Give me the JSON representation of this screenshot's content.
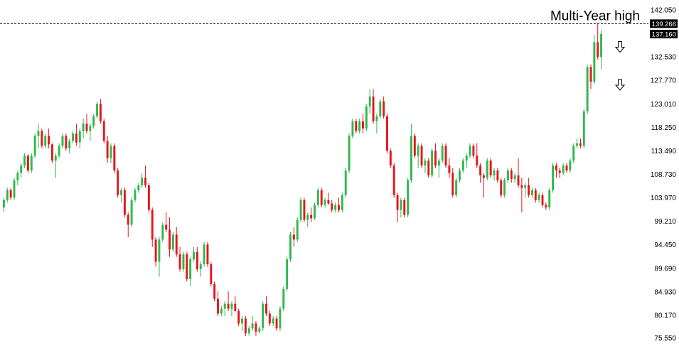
{
  "chart_data": {
    "type": "candlestick",
    "title": "",
    "ylim": [
      75.55,
      142.05
    ],
    "y_ticks": [
      "142.050",
      "137.290",
      "132.530",
      "127.770",
      "123.010",
      "118.250",
      "113.490",
      "108.730",
      "103.970",
      "99.210",
      "94.450",
      "89.690",
      "84.930",
      "80.170",
      "75.550"
    ],
    "y_tick_values": [
      142.05,
      137.29,
      132.53,
      127.77,
      123.01,
      118.25,
      113.49,
      108.73,
      103.97,
      99.21,
      94.45,
      89.69,
      84.93,
      80.17,
      75.55
    ],
    "grid": false,
    "colors": {
      "up": "#2db84d",
      "down": "#e8141c",
      "tag_bg": "#000000",
      "line": "#000000"
    },
    "reference_line": {
      "value": 139.266,
      "label": "139.266",
      "style": "dashed"
    },
    "current_price": {
      "value": 137.16,
      "label": "137.160"
    },
    "annotation": {
      "text": "Multi-Year high"
    },
    "arrows": [
      {
        "icon": "down-arrow-icon",
        "value": 134.5
      },
      {
        "icon": "down-arrow-icon",
        "value": 126.8
      }
    ],
    "candles": [
      [
        102,
        104,
        101,
        103.5
      ],
      [
        103.5,
        106,
        103,
        105.5
      ],
      [
        105.5,
        106,
        103.5,
        104
      ],
      [
        104,
        108,
        103.5,
        107.5
      ],
      [
        107.5,
        109.5,
        106.5,
        109
      ],
      [
        109,
        111,
        108,
        110.5
      ],
      [
        110.5,
        113,
        110,
        112.5
      ],
      [
        112.5,
        112.8,
        109,
        109.5
      ],
      [
        109.5,
        113,
        109,
        112.5
      ],
      [
        112.5,
        117,
        112,
        116.5
      ],
      [
        116.5,
        119,
        114,
        117.5
      ],
      [
        117.5,
        118,
        114,
        114.5
      ],
      [
        114.5,
        117,
        114,
        116.5
      ],
      [
        116.5,
        118,
        114,
        114.8
      ],
      [
        114.8,
        115,
        111,
        111.5
      ],
      [
        111.5,
        113,
        108,
        112.5
      ],
      [
        112.5,
        115,
        112,
        114.5
      ],
      [
        114.5,
        117,
        114,
        116.5
      ],
      [
        116.5,
        117,
        113.5,
        114
      ],
      [
        114,
        116,
        113,
        115.5
      ],
      [
        115.5,
        117.5,
        115,
        117
      ],
      [
        117,
        119,
        114.5,
        115.2
      ],
      [
        115.2,
        118,
        114,
        117.5
      ],
      [
        117.5,
        120,
        116,
        119
      ],
      [
        119,
        121,
        117,
        117.5
      ],
      [
        117.5,
        119,
        115.5,
        118.5
      ],
      [
        118.5,
        121,
        118,
        120.5
      ],
      [
        120.5,
        123.5,
        120,
        123
      ],
      [
        123,
        124,
        119,
        119.5
      ],
      [
        119.5,
        120,
        115,
        115.5
      ],
      [
        115.5,
        116.5,
        111,
        112
      ],
      [
        112,
        115,
        111,
        114.5
      ],
      [
        114.5,
        115,
        109,
        109.5
      ],
      [
        109.5,
        110,
        104,
        104.5
      ],
      [
        104.5,
        106,
        103,
        105.5
      ],
      [
        105.5,
        106,
        100,
        100.5
      ],
      [
        100.5,
        101,
        96,
        98.5
      ],
      [
        98.5,
        104,
        98,
        103.5
      ],
      [
        103.5,
        106,
        103,
        105.5
      ],
      [
        105.5,
        107,
        105,
        106.5
      ],
      [
        106.5,
        109,
        106,
        108
      ],
      [
        108,
        110.5,
        106,
        106.5
      ],
      [
        106.5,
        107,
        101,
        101.5
      ],
      [
        101.5,
        102,
        94,
        95.5
      ],
      [
        95.5,
        96,
        90,
        91
      ],
      [
        91,
        96,
        88,
        95.5
      ],
      [
        95.5,
        99,
        95,
        98.5
      ],
      [
        98.5,
        101,
        97,
        97.5
      ],
      [
        97.5,
        100,
        92,
        93.5
      ],
      [
        93.5,
        97,
        93,
        96.5
      ],
      [
        96.5,
        98,
        92,
        92.5
      ],
      [
        92.5,
        94,
        89,
        89.5
      ],
      [
        89.5,
        93,
        89,
        92.5
      ],
      [
        92.5,
        93,
        87,
        87.5
      ],
      [
        87.5,
        92,
        86,
        91.5
      ],
      [
        91.5,
        94,
        91,
        93
      ],
      [
        93,
        94,
        89,
        89.5
      ],
      [
        89.5,
        91,
        88,
        90.5
      ],
      [
        90.5,
        95,
        90,
        94.5
      ],
      [
        94.5,
        95,
        90,
        90.5
      ],
      [
        90.5,
        91,
        86,
        86.5
      ],
      [
        86.5,
        87,
        83,
        83.5
      ],
      [
        83.5,
        85,
        80,
        80.5
      ],
      [
        80.5,
        82,
        80,
        81.5
      ],
      [
        81.5,
        83,
        80,
        82.5
      ],
      [
        82.5,
        85,
        81,
        81.5
      ],
      [
        81.5,
        83,
        80,
        82.5
      ],
      [
        82.5,
        84,
        81,
        81
      ],
      [
        81,
        81.5,
        78,
        78.5
      ],
      [
        78.5,
        80,
        77,
        79.5
      ],
      [
        79.5,
        80,
        76,
        76.5
      ],
      [
        76.5,
        78,
        76,
        77.5
      ],
      [
        77.5,
        80,
        77,
        78.5
      ],
      [
        78.5,
        79,
        76,
        76.8
      ],
      [
        76.8,
        78,
        76.5,
        77.5
      ],
      [
        77.5,
        83,
        77,
        82.5
      ],
      [
        82.5,
        84,
        80,
        80.5
      ],
      [
        80.5,
        81,
        78,
        78.5
      ],
      [
        78.5,
        80,
        78,
        79.5
      ],
      [
        79.5,
        80,
        77,
        77.5
      ],
      [
        77.5,
        82,
        77,
        81.5
      ],
      [
        81.5,
        86,
        81,
        85.5
      ],
      [
        85.5,
        92,
        85,
        91.5
      ],
      [
        91.5,
        97,
        91,
        96.5
      ],
      [
        96.5,
        98,
        94,
        95.5
      ],
      [
        95.5,
        100,
        95,
        99.5
      ],
      [
        99.5,
        104,
        99,
        103.5
      ],
      [
        103.5,
        104,
        99,
        99.5
      ],
      [
        99.5,
        101,
        98,
        100.5
      ],
      [
        100.5,
        102,
        99,
        99.8
      ],
      [
        99.8,
        103,
        99.5,
        102.5
      ],
      [
        102.5,
        106,
        102,
        105.5
      ],
      [
        105.5,
        106,
        102,
        102.5
      ],
      [
        102.5,
        104,
        102,
        103.5
      ],
      [
        103.5,
        105,
        102.5,
        102.8
      ],
      [
        102.8,
        103.5,
        101,
        101.5
      ],
      [
        101.5,
        103,
        101,
        102.5
      ],
      [
        102.5,
        104,
        101,
        101.5
      ],
      [
        101.5,
        105,
        101,
        104.5
      ],
      [
        104.5,
        110,
        104,
        109.5
      ],
      [
        109.5,
        117,
        109,
        116.5
      ],
      [
        116.5,
        120,
        116,
        119.5
      ],
      [
        119.5,
        120,
        117,
        117.5
      ],
      [
        117.5,
        120,
        117,
        119.5
      ],
      [
        119.5,
        121,
        117,
        118
      ],
      [
        118,
        123,
        117.5,
        122.5
      ],
      [
        122.5,
        126,
        121,
        124.5
      ],
      [
        124.5,
        126,
        119,
        119.5
      ],
      [
        119.5,
        121,
        117,
        120.5
      ],
      [
        120.5,
        124,
        120,
        123.5
      ],
      [
        123.5,
        124.5,
        120,
        120.5
      ],
      [
        120.5,
        121,
        113,
        113.5
      ],
      [
        113.5,
        114,
        110,
        110.5
      ],
      [
        110.5,
        111,
        104,
        104.5
      ],
      [
        104.5,
        105,
        99,
        101.5
      ],
      [
        101.5,
        104,
        100,
        103.5
      ],
      [
        103.5,
        104,
        100,
        100.5
      ],
      [
        100.5,
        108,
        100,
        107.5
      ],
      [
        107.5,
        119,
        107,
        116.5
      ],
      [
        116.5,
        117,
        112,
        112.5
      ],
      [
        112.5,
        115,
        110,
        114.5
      ],
      [
        114.5,
        115,
        110,
        110.5
      ],
      [
        110.5,
        112,
        109,
        111.5
      ],
      [
        111.5,
        112,
        108,
        108.5
      ],
      [
        108.5,
        114,
        108,
        113.5
      ],
      [
        113.5,
        115,
        110,
        110.5
      ],
      [
        110.5,
        112,
        108,
        111.5
      ],
      [
        111.5,
        115,
        111,
        114.5
      ],
      [
        114.5,
        115,
        110,
        110.5
      ],
      [
        110.5,
        112,
        108,
        109
      ],
      [
        109,
        110,
        104,
        104.5
      ],
      [
        104.5,
        108,
        104,
        107.5
      ],
      [
        107.5,
        110,
        107,
        109.5
      ],
      [
        109.5,
        112,
        109,
        111.5
      ],
      [
        111.5,
        113,
        110,
        112.5
      ],
      [
        112.5,
        115,
        112,
        114.5
      ],
      [
        114.5,
        115,
        112,
        112.5
      ],
      [
        112.5,
        115,
        110,
        110.5
      ],
      [
        110.5,
        111,
        107,
        108.5
      ],
      [
        108.5,
        109,
        104,
        108
      ],
      [
        108,
        112,
        107.5,
        111.5
      ],
      [
        111.5,
        112,
        108,
        108.5
      ],
      [
        108.5,
        110,
        107.5,
        109.5
      ],
      [
        109.5,
        110,
        107,
        107.5
      ],
      [
        107.5,
        108,
        104,
        104.5
      ],
      [
        104.5,
        108,
        104,
        107.5
      ],
      [
        107.5,
        110,
        107,
        109.5
      ],
      [
        109.5,
        110,
        107,
        107.8
      ],
      [
        107.8,
        109,
        107,
        108.5
      ],
      [
        108.5,
        112,
        106,
        106.5
      ],
      [
        106.5,
        108,
        101,
        106
      ],
      [
        106,
        107,
        104,
        106.5
      ],
      [
        106.5,
        108,
        104,
        104.5
      ],
      [
        104.5,
        106,
        104,
        105.5
      ],
      [
        105.5,
        106,
        103,
        103.5
      ],
      [
        103.5,
        105,
        103,
        104.5
      ],
      [
        104.5,
        105,
        102,
        102.5
      ],
      [
        102.5,
        103,
        101.5,
        102
      ],
      [
        102,
        106,
        101.5,
        105.5
      ],
      [
        105.5,
        111,
        105,
        110.5
      ],
      [
        110.5,
        111,
        108,
        109.5
      ],
      [
        109.5,
        110,
        108,
        109
      ],
      [
        109,
        111,
        108.5,
        110.5
      ],
      [
        110.5,
        111,
        109,
        109.5
      ],
      [
        109.5,
        112,
        109,
        111.5
      ],
      [
        111.5,
        115,
        111,
        114.5
      ],
      [
        114.5,
        116,
        114,
        115
      ],
      [
        115,
        116,
        114,
        114.5
      ],
      [
        114.5,
        122,
        114,
        121.5
      ],
      [
        121.5,
        131,
        121,
        130.5
      ],
      [
        130.5,
        131,
        126,
        127.5
      ],
      [
        127.5,
        137,
        127,
        135.5
      ],
      [
        135.5,
        139.3,
        132,
        132.5
      ],
      [
        132.5,
        138,
        130,
        137.16
      ]
    ]
  }
}
